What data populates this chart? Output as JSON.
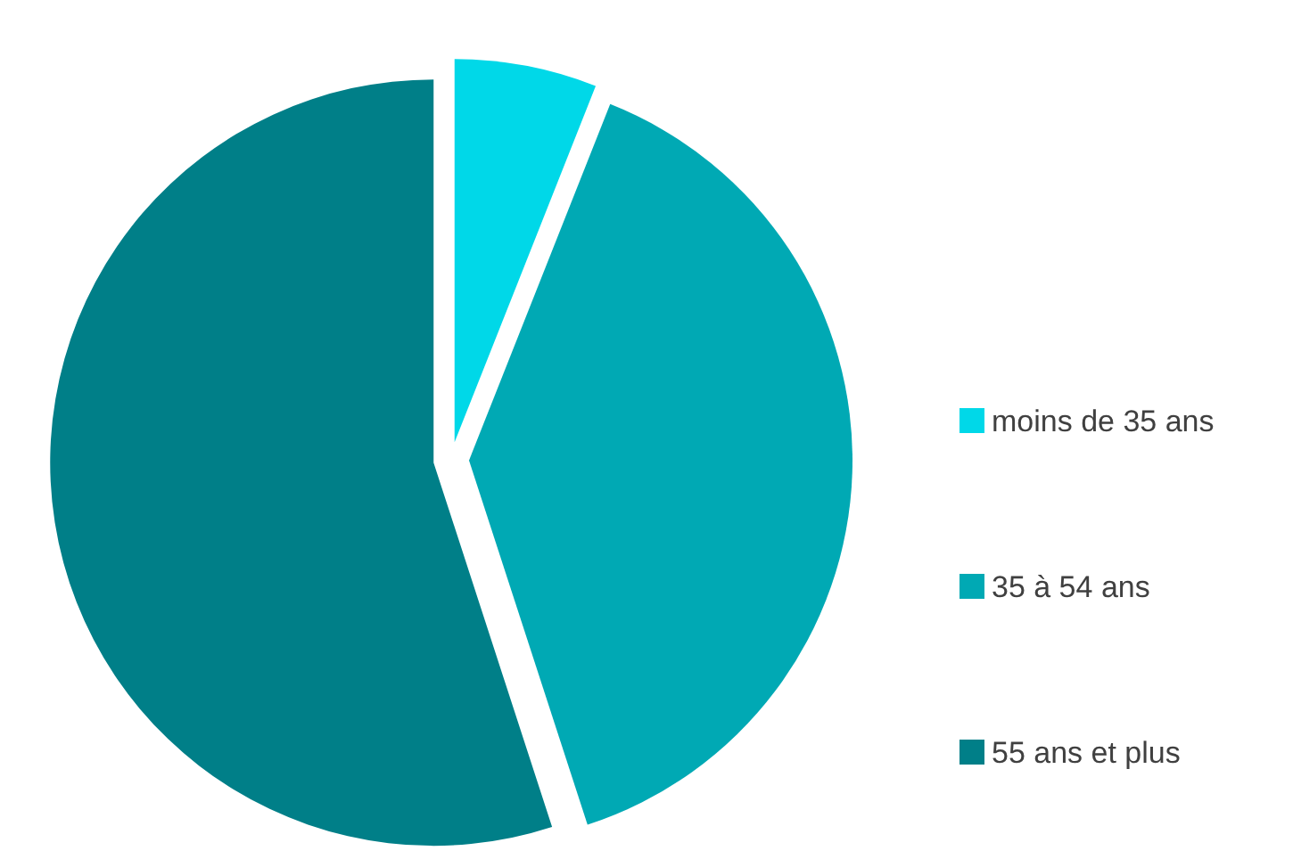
{
  "chart_data": {
    "type": "pie",
    "categories": [
      "moins de 35 ans",
      "35 à 54 ans",
      "55 ans et plus"
    ],
    "values": [
      6,
      39,
      55
    ],
    "colors": [
      "#00d8e8",
      "#00a9b4",
      "#007f88"
    ],
    "legend": "right"
  }
}
